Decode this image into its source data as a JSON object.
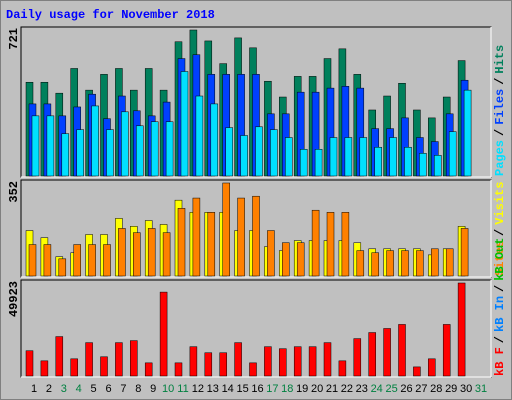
{
  "title": "Daily usage for November 2018",
  "legend_separator": "/",
  "categories": [
    "1",
    "2",
    "3",
    "4",
    "5",
    "6",
    "7",
    "8",
    "9",
    "10",
    "11",
    "12",
    "13",
    "14",
    "15",
    "16",
    "17",
    "18",
    "19",
    "20",
    "21",
    "22",
    "23",
    "24",
    "25",
    "26",
    "27",
    "28",
    "29",
    "30",
    "31"
  ],
  "category_colors": [
    "#000000",
    "#000000",
    "#008040",
    "#008040",
    "#000000",
    "#000000",
    "#000000",
    "#000000",
    "#000000",
    "#008040",
    "#008040",
    "#000000",
    "#000000",
    "#000000",
    "#000000",
    "#000000",
    "#008040",
    "#008040",
    "#000000",
    "#000000",
    "#000000",
    "#000000",
    "#000000",
    "#008040",
    "#008040",
    "#000000",
    "#000000",
    "#000000",
    "#000000",
    "#000000",
    "#008040"
  ],
  "chart_data": [
    {
      "type": "bar",
      "ylim": [
        0,
        721
      ],
      "yticks": [
        721
      ],
      "series": [
        {
          "name": "Pages",
          "color": "#00e0ff",
          "values": [
            297,
            297,
            209,
            229,
            346,
            229,
            317,
            248,
            268,
            268,
            516,
            395,
            356,
            239,
            200,
            243,
            229,
            190,
            132,
            132,
            190,
            190,
            190,
            142,
            190,
            142,
            112,
            102,
            219,
            424,
            0
          ]
        },
        {
          "name": "Files",
          "color": "#0040ff",
          "values": [
            356,
            356,
            297,
            341,
            404,
            283,
            395,
            322,
            297,
            365,
            580,
            599,
            502,
            502,
            502,
            502,
            307,
            307,
            414,
            414,
            434,
            443,
            434,
            234,
            234,
            287,
            190,
            170,
            307,
            473,
            0
          ]
        },
        {
          "name": "Hits",
          "color": "#00805c",
          "values": [
            463,
            463,
            409,
            531,
            424,
            502,
            531,
            424,
            531,
            424,
            663,
            721,
            667,
            555,
            682,
            633,
            468,
            390,
            492,
            492,
            580,
            628,
            502,
            326,
            395,
            458,
            326,
            287,
            390,
            570,
            0
          ]
        }
      ]
    },
    {
      "type": "bar",
      "ylim": [
        0,
        352
      ],
      "yticks": [
        352
      ],
      "series": [
        {
          "name": "Sites",
          "color": "#ff8000",
          "values": [
            119,
            119,
            65,
            119,
            119,
            119,
            180,
            164,
            180,
            164,
            256,
            295,
            241,
            352,
            295,
            302,
            172,
            126,
            126,
            249,
            241,
            241,
            96,
            88,
            96,
            96,
            96,
            103,
            103,
            180,
            0
          ]
        },
        {
          "name": "Visits",
          "color": "#ffff00",
          "values": [
            172,
            145,
            73,
            88,
            157,
            157,
            218,
            188,
            210,
            195,
            287,
            241,
            241,
            241,
            172,
            172,
            111,
            96,
            134,
            134,
            134,
            134,
            126,
            103,
            103,
            103,
            103,
            80,
            103,
            188,
            0
          ]
        }
      ]
    },
    {
      "type": "bar",
      "ylim": [
        0,
        49923
      ],
      "yticks": [
        49923
      ],
      "series": [
        {
          "name": "kB F",
          "color": "#ff0000",
          "values": [
            13566,
            8140,
            21163,
            9225,
            17907,
            10311,
            17907,
            18992,
            7055,
            45039,
            7055,
            15737,
            12481,
            12481,
            17907,
            7055,
            15737,
            14652,
            15737,
            15737,
            17907,
            8140,
            20078,
            23334,
            25504,
            27674,
            4884,
            9225,
            27674,
            49923,
            0
          ]
        }
      ],
      "legend_only": [
        {
          "name": "kB In",
          "color": "#0080ff"
        },
        {
          "name": "kB Out",
          "color": "#00c000"
        }
      ]
    }
  ]
}
